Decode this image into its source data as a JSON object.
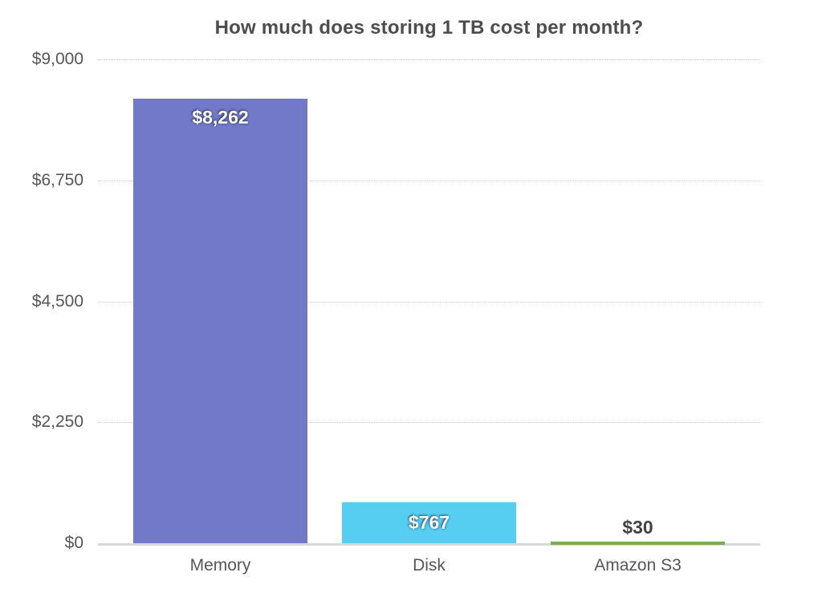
{
  "chart_data": {
    "type": "bar",
    "title": "How much does storing 1 TB cost per month?",
    "categories": [
      "Memory",
      "Disk",
      "Amazon S3"
    ],
    "values": [
      8262,
      767,
      30
    ],
    "value_labels": [
      "$8,262",
      "$767",
      "$30"
    ],
    "bar_colors": [
      "#7179C8",
      "#55CEF2",
      "#79AD53"
    ],
    "value_label_colors": [
      "#ffffff",
      "#ffffff",
      "#424242"
    ],
    "value_label_placement": [
      "inside-top",
      "inside-middle",
      "above"
    ],
    "xlabel": "",
    "ylabel": "",
    "ylim": [
      0,
      9000
    ],
    "yticks": [
      0,
      2250,
      4500,
      6750,
      9000
    ],
    "ytick_labels": [
      "$0",
      "$2,250",
      "$4,500",
      "$6,750",
      "$9,000"
    ],
    "grid": "horizontal-dotted",
    "legend": "none"
  },
  "colors": {
    "background": "#ffffff",
    "title_text": "#4d4d4d",
    "axis_text": "#565656",
    "gridline": "#c9c9c9",
    "baseline": "#d8d8d8"
  }
}
